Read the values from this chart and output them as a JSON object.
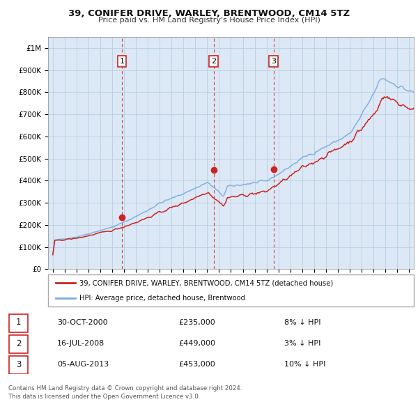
{
  "title": "39, CONIFER DRIVE, WARLEY, BRENTWOOD, CM14 5TZ",
  "subtitle": "Price paid vs. HM Land Registry's House Price Index (HPI)",
  "ylim": [
    0,
    1050000
  ],
  "yticks": [
    0,
    100000,
    200000,
    300000,
    400000,
    500000,
    600000,
    700000,
    800000,
    900000,
    1000000
  ],
  "ytick_labels": [
    "£0",
    "£100K",
    "£200K",
    "£300K",
    "£400K",
    "£500K",
    "£600K",
    "£700K",
    "£800K",
    "£900K",
    "£1M"
  ],
  "hpi_color": "#7aabde",
  "sale_color": "#cc2222",
  "bg_color": "#dce8f5",
  "grid_color": "#b8cfe0",
  "transactions": [
    {
      "date_num": 2000.83,
      "price": 235000,
      "label": "1"
    },
    {
      "date_num": 2008.54,
      "price": 449000,
      "label": "2"
    },
    {
      "date_num": 2013.59,
      "price": 453000,
      "label": "3"
    }
  ],
  "legend_property": "39, CONIFER DRIVE, WARLEY, BRENTWOOD, CM14 5TZ (detached house)",
  "legend_hpi": "HPI: Average price, detached house, Brentwood",
  "footer_line1": "Contains HM Land Registry data © Crown copyright and database right 2024.",
  "footer_line2": "This data is licensed under the Open Government Licence v3.0.",
  "transaction_table": [
    {
      "num": "1",
      "date": "30-OCT-2000",
      "price": "£235,000",
      "relation": "8% ↓ HPI"
    },
    {
      "num": "2",
      "date": "16-JUL-2008",
      "price": "£449,000",
      "relation": "3% ↓ HPI"
    },
    {
      "num": "3",
      "date": "05-AUG-2013",
      "price": "£453,000",
      "relation": "10% ↓ HPI"
    }
  ]
}
